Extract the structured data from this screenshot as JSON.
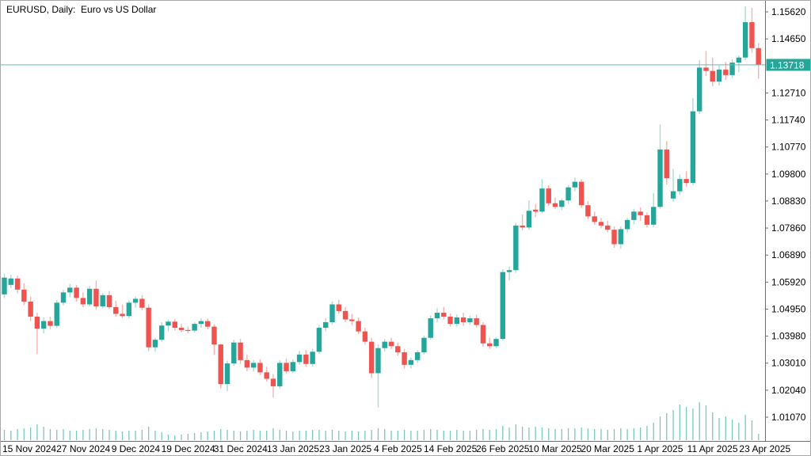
{
  "window": {
    "title": "EURUSD, Daily:  Euro vs US Dollar"
  },
  "chart_data": {
    "type": "candlestick",
    "symbol": "EURUSD",
    "timeframe": "Daily",
    "description": "Euro vs US Dollar",
    "current_price": 1.13718,
    "current_price_label": "1.13718",
    "price_axis": {
      "tick_step": 0.0097,
      "top_tick": 1.1562,
      "bottom_tick": 1.0107,
      "tick_labels": [
        "1.15620",
        "1.14650",
        "1.12710",
        "1.11740",
        "1.10770",
        "1.09800",
        "1.08830",
        "1.07860",
        "1.06890",
        "1.05920",
        "1.04950",
        "1.03980",
        "1.03010",
        "1.02040",
        "1.01070"
      ]
    },
    "time_axis": {
      "tick_labels": [
        "15 Nov 2024",
        "27 Nov 2024",
        "9 Dec 2024",
        "19 Dec 2024",
        "31 Dec 2024",
        "13 Jan 2025",
        "23 Jan 2025",
        "4 Feb 2025",
        "14 Feb 2025",
        "26 Feb 2025",
        "10 Mar 2025",
        "20 Mar 2025",
        "1 Apr 2025",
        "11 Apr 2025",
        "23 Apr 2025"
      ]
    },
    "grid": false,
    "legend": false,
    "colors": {
      "up_body": "#26a69a",
      "down_body": "#ef5350",
      "up_wick": "#a9dcd6",
      "down_wick": "#f8b3b0",
      "volume_bar": "rgba(38,166,154,0.62)",
      "price_line": "#5bc0b7",
      "price_label_bg": "#26a69a",
      "price_label_text": "#ffffff",
      "axis_text": "#000000",
      "axis_line": "#6e6e6e"
    },
    "candles_ohlc": [
      [
        1.0548,
        1.0622,
        1.0535,
        1.0608
      ],
      [
        1.0582,
        1.0618,
        1.057,
        1.0605
      ],
      [
        1.0605,
        1.0615,
        1.0552,
        1.0565
      ],
      [
        1.0565,
        1.0588,
        1.051,
        1.0522
      ],
      [
        1.0522,
        1.054,
        1.0452,
        1.0468
      ],
      [
        1.0468,
        1.0482,
        1.0335,
        1.0425
      ],
      [
        1.0425,
        1.0465,
        1.0408,
        1.0452
      ],
      [
        1.0452,
        1.0468,
        1.0422,
        1.0435
      ],
      [
        1.0435,
        1.0528,
        1.0428,
        1.0518
      ],
      [
        1.0518,
        1.0565,
        1.0508,
        1.0555
      ],
      [
        1.0555,
        1.0585,
        1.0538,
        1.0572
      ],
      [
        1.0572,
        1.0582,
        1.0522,
        1.0535
      ],
      [
        1.0535,
        1.0555,
        1.0502,
        1.0512
      ],
      [
        1.0512,
        1.0578,
        1.0505,
        1.0568
      ],
      [
        1.0568,
        1.0598,
        1.0492,
        1.0505
      ],
      [
        1.0505,
        1.0552,
        1.0498,
        1.0545
      ],
      [
        1.0545,
        1.056,
        1.0495,
        1.0502
      ],
      [
        1.0502,
        1.0525,
        1.0468,
        1.0478
      ],
      [
        1.0478,
        1.0512,
        1.0462,
        1.047
      ],
      [
        1.047,
        1.0525,
        1.0462,
        1.0518
      ],
      [
        1.0518,
        1.054,
        1.05,
        1.0532
      ],
      [
        1.0532,
        1.0545,
        1.049,
        1.05
      ],
      [
        1.05,
        1.0512,
        1.0344,
        1.0358
      ],
      [
        1.0358,
        1.0392,
        1.0342,
        1.0385
      ],
      [
        1.0385,
        1.0448,
        1.0378,
        1.0436
      ],
      [
        1.0436,
        1.0458,
        1.0415,
        1.045
      ],
      [
        1.045,
        1.046,
        1.0418,
        1.0428
      ],
      [
        1.0428,
        1.0442,
        1.0412,
        1.042
      ],
      [
        1.042,
        1.0432,
        1.0408,
        1.0418
      ],
      [
        1.0418,
        1.0448,
        1.041,
        1.0442
      ],
      [
        1.0442,
        1.0462,
        1.0428,
        1.0452
      ],
      [
        1.0452,
        1.0462,
        1.0422,
        1.0432
      ],
      [
        1.0432,
        1.044,
        1.033,
        1.0368
      ],
      [
        1.0368,
        1.0372,
        1.021,
        1.0226
      ],
      [
        1.0226,
        1.031,
        1.0201,
        1.03
      ],
      [
        1.03,
        1.0385,
        1.0292,
        1.0375
      ],
      [
        1.0375,
        1.0388,
        1.0298,
        1.0312
      ],
      [
        1.0312,
        1.0332,
        1.0272,
        1.0285
      ],
      [
        1.0285,
        1.0312,
        1.027,
        1.0302
      ],
      [
        1.0302,
        1.0315,
        1.0258,
        1.0268
      ],
      [
        1.0268,
        1.0288,
        1.0235,
        1.0245
      ],
      [
        1.0245,
        1.0262,
        1.0178,
        1.0218
      ],
      [
        1.0218,
        1.0312,
        1.021,
        1.0302
      ],
      [
        1.0302,
        1.0318,
        1.0262,
        1.0272
      ],
      [
        1.0272,
        1.0315,
        1.0265,
        1.0305
      ],
      [
        1.0305,
        1.0345,
        1.0295,
        1.0332
      ],
      [
        1.0332,
        1.0348,
        1.0288,
        1.0298
      ],
      [
        1.0298,
        1.0352,
        1.029,
        1.0342
      ],
      [
        1.0342,
        1.0438,
        1.0335,
        1.0428
      ],
      [
        1.0428,
        1.0462,
        1.0415,
        1.0448
      ],
      [
        1.0448,
        1.0522,
        1.044,
        1.0512
      ],
      [
        1.0512,
        1.0528,
        1.0478,
        1.0488
      ],
      [
        1.0488,
        1.0502,
        1.0448,
        1.0458
      ],
      [
        1.0458,
        1.0478,
        1.0438,
        1.0452
      ],
      [
        1.0452,
        1.0465,
        1.0405,
        1.0415
      ],
      [
        1.0415,
        1.0428,
        1.0368,
        1.0378
      ],
      [
        1.0378,
        1.0392,
        1.0248,
        1.0265
      ],
      [
        1.0265,
        1.0368,
        1.0142,
        1.0355
      ],
      [
        1.0355,
        1.0388,
        1.0342,
        1.0378
      ],
      [
        1.0378,
        1.0392,
        1.0352,
        1.0362
      ],
      [
        1.0362,
        1.0375,
        1.0328,
        1.034
      ],
      [
        1.034,
        1.0352,
        1.0282,
        1.0295
      ],
      [
        1.0295,
        1.0322,
        1.0282,
        1.0312
      ],
      [
        1.0312,
        1.0348,
        1.0302,
        1.034
      ],
      [
        1.034,
        1.04,
        1.0332,
        1.0392
      ],
      [
        1.0392,
        1.0472,
        1.0385,
        1.0462
      ],
      [
        1.0462,
        1.0498,
        1.0448,
        1.0482
      ],
      [
        1.0482,
        1.0502,
        1.0458,
        1.0468
      ],
      [
        1.0468,
        1.048,
        1.0432,
        1.0442
      ],
      [
        1.0442,
        1.0475,
        1.0432,
        1.0465
      ],
      [
        1.0465,
        1.0482,
        1.0435,
        1.0448
      ],
      [
        1.0448,
        1.0472,
        1.0438,
        1.0462
      ],
      [
        1.0462,
        1.0475,
        1.0428,
        1.0438
      ],
      [
        1.0438,
        1.0448,
        1.036,
        1.0372
      ],
      [
        1.0372,
        1.0392,
        1.0352,
        1.0362
      ],
      [
        1.0362,
        1.0395,
        1.0355,
        1.0388
      ],
      [
        1.0388,
        1.0638,
        1.0382,
        1.0628
      ],
      [
        1.0628,
        1.0648,
        1.0598,
        1.0635
      ],
      [
        1.0635,
        1.0805,
        1.0625,
        1.0795
      ],
      [
        1.0795,
        1.0835,
        1.0778,
        1.0788
      ],
      [
        1.0788,
        1.0885,
        1.078,
        1.0848
      ],
      [
        1.0852,
        1.0872,
        1.0825,
        1.0845
      ],
      [
        1.0845,
        1.0962,
        1.0838,
        1.0928
      ],
      [
        1.0928,
        1.094,
        1.0865,
        1.0875
      ],
      [
        1.0875,
        1.0895,
        1.0855,
        1.0862
      ],
      [
        1.0862,
        1.0892,
        1.085,
        1.0885
      ],
      [
        1.0885,
        1.094,
        1.0872,
        1.0932
      ],
      [
        1.0932,
        1.0967,
        1.0918,
        1.0952
      ],
      [
        1.0952,
        1.0962,
        1.0858,
        1.0868
      ],
      [
        1.0868,
        1.0882,
        1.0818,
        1.0828
      ],
      [
        1.0828,
        1.0845,
        1.0798,
        1.0808
      ],
      [
        1.0808,
        1.0822,
        1.0785,
        1.0795
      ],
      [
        1.0795,
        1.0812,
        1.077,
        1.078
      ],
      [
        1.078,
        1.0792,
        1.0715,
        1.0728
      ],
      [
        1.0728,
        1.0792,
        1.0712,
        1.0782
      ],
      [
        1.0782,
        1.0822,
        1.077,
        1.0815
      ],
      [
        1.0815,
        1.0855,
        1.08,
        1.0845
      ],
      [
        1.0845,
        1.086,
        1.0812,
        1.0832
      ],
      [
        1.0832,
        1.0842,
        1.0788,
        1.0798
      ],
      [
        1.0798,
        1.0912,
        1.079,
        1.0862
      ],
      [
        1.0862,
        1.1158,
        1.0855,
        1.1068
      ],
      [
        1.1068,
        1.1098,
        1.0942,
        1.0965
      ],
      [
        1.0892,
        1.0998,
        1.088,
        1.0918
      ],
      [
        1.0918,
        1.0978,
        1.0905,
        1.0962
      ],
      [
        1.0962,
        1.099,
        1.0935,
        1.0948
      ],
      [
        1.0948,
        1.1252,
        1.094,
        1.1205
      ],
      [
        1.1205,
        1.1388,
        1.1195,
        1.1362
      ],
      [
        1.1362,
        1.1422,
        1.1332,
        1.135
      ],
      [
        1.135,
        1.1398,
        1.1295,
        1.1312
      ],
      [
        1.1312,
        1.137,
        1.1298,
        1.1355
      ],
      [
        1.1355,
        1.1382,
        1.1318,
        1.1335
      ],
      [
        1.1335,
        1.1392,
        1.1325,
        1.138
      ],
      [
        1.138,
        1.1405,
        1.1345,
        1.1398
      ],
      [
        1.1398,
        1.1582,
        1.1388,
        1.1525
      ],
      [
        1.1525,
        1.1576,
        1.1415,
        1.1432
      ],
      [
        1.1432,
        1.145,
        1.1322,
        1.13718
      ]
    ],
    "tick_volumes": [
      13,
      12,
      14,
      15,
      16,
      20,
      17,
      14,
      13,
      14,
      12,
      12,
      13,
      14,
      15,
      14,
      13,
      12,
      11,
      12,
      12,
      13,
      17,
      12,
      10,
      7,
      6,
      7,
      8,
      9,
      10,
      11,
      12,
      14,
      13,
      12,
      11,
      12,
      13,
      12,
      12,
      15,
      13,
      12,
      11,
      12,
      12,
      13,
      13,
      12,
      13,
      12,
      11,
      12,
      11,
      12,
      13,
      15,
      14,
      12,
      12,
      13,
      12,
      12,
      13,
      14,
      13,
      12,
      12,
      13,
      12,
      12,
      13,
      14,
      13,
      14,
      18,
      16,
      20,
      17,
      16,
      17,
      16,
      15,
      14,
      14,
      15,
      15,
      16,
      15,
      14,
      14,
      13,
      14,
      15,
      14,
      15,
      16,
      18,
      22,
      30,
      34,
      38,
      45,
      42,
      40,
      48,
      44,
      35,
      28,
      30,
      26,
      22,
      32,
      25,
      8
    ]
  }
}
